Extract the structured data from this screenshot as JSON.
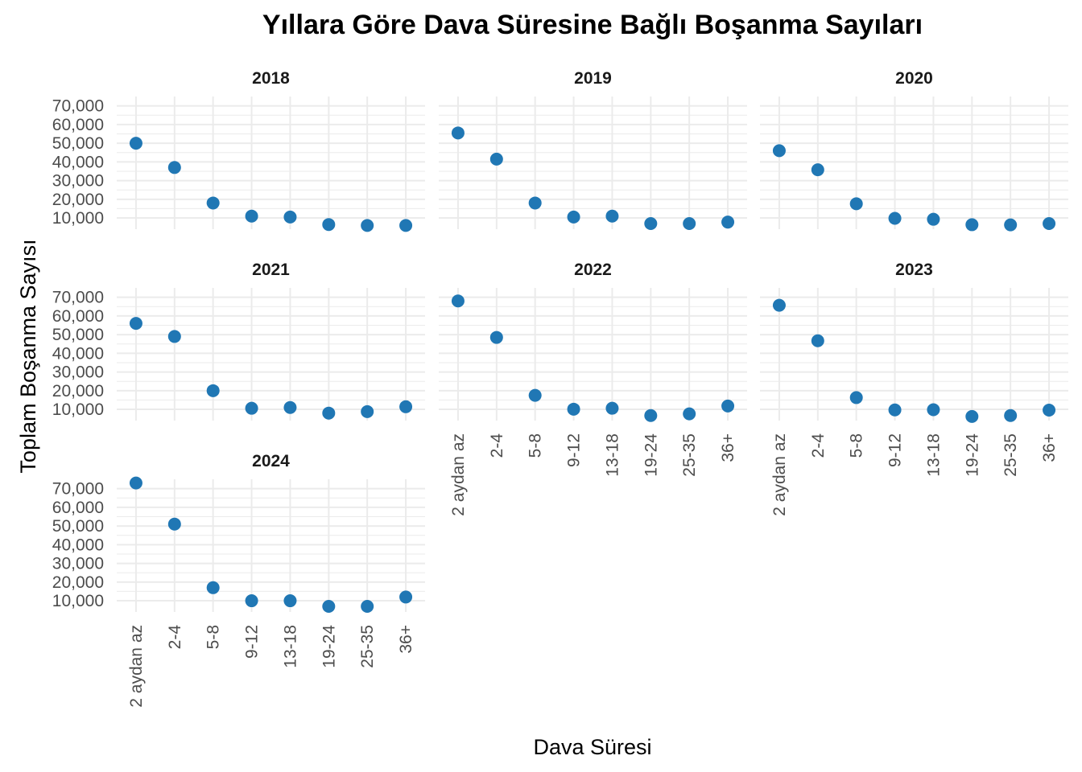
{
  "chart_data": {
    "type": "scatter",
    "title": "Yıllara Göre Dava Süresine Bağlı Boşanma Sayıları",
    "xlabel": "Dava Süresi",
    "ylabel": "Toplam Boşanma Sayısı",
    "categories": [
      "2 aydan az",
      "2-4",
      "5-8",
      "9-12",
      "13-18",
      "19-24",
      "25-35",
      "36+"
    ],
    "yticks": [
      10000,
      20000,
      30000,
      40000,
      50000,
      60000,
      70000
    ],
    "ytick_labels": [
      "10,000",
      "20,000",
      "30,000",
      "40,000",
      "50,000",
      "60,000",
      "70,000"
    ],
    "ylim": [
      4000,
      75000
    ],
    "grid": true,
    "point_color": "#2077B4",
    "grid_color": "#EBEBEB",
    "panels": [
      {
        "name": "2018",
        "values": [
          50000,
          37000,
          18000,
          11000,
          10500,
          6500,
          6000,
          6000
        ]
      },
      {
        "name": "2019",
        "values": [
          55500,
          41500,
          18000,
          10500,
          11000,
          7000,
          7000,
          7800
        ]
      },
      {
        "name": "2020",
        "values": [
          46000,
          35800,
          17600,
          9800,
          9300,
          6400,
          6300,
          7000
        ]
      },
      {
        "name": "2021",
        "values": [
          56000,
          49000,
          20000,
          10600,
          11000,
          8000,
          8800,
          11400
        ]
      },
      {
        "name": "2022",
        "values": [
          68000,
          48500,
          17500,
          10100,
          10600,
          6700,
          7600,
          11800
        ]
      },
      {
        "name": "2023",
        "values": [
          65700,
          46700,
          16300,
          9700,
          9800,
          6200,
          6700,
          9600
        ]
      },
      {
        "name": "2024",
        "values": [
          73000,
          51000,
          17000,
          10000,
          10000,
          7000,
          7000,
          12000
        ]
      }
    ]
  }
}
